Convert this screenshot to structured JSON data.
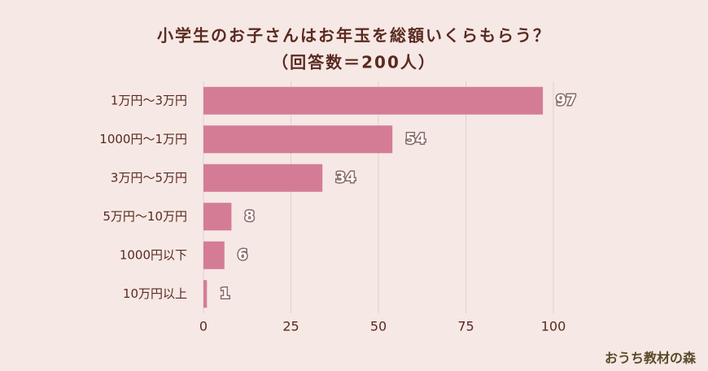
{
  "chart_data": {
    "type": "bar",
    "orientation": "horizontal",
    "title": "小学生のお子さんはお年玉を総額いくらもらう？",
    "subtitle": "（回答数＝200人）",
    "categories": [
      "1万円～3万円",
      "1000円～1万円",
      "3万円～5万円",
      "5万円～10万円",
      "1000円以下",
      "10万円以上"
    ],
    "values": [
      97,
      54,
      34,
      8,
      6,
      1
    ],
    "color": "#d47c96",
    "xlim": [
      0,
      100
    ],
    "xticks": [
      0,
      25,
      50,
      75,
      100
    ],
    "grid": true
  },
  "brand": "おうち教材の森"
}
